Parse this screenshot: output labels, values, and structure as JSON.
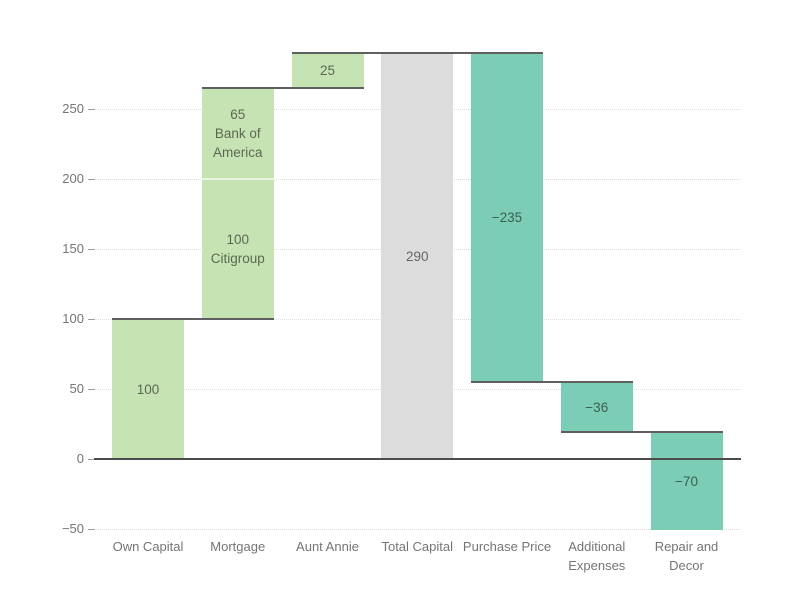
{
  "chart_data": {
    "type": "bar",
    "subtype": "waterfall",
    "title": "",
    "xlabel": "",
    "ylabel": "",
    "grid": "dotted horizontal",
    "legend": "none",
    "ylim": [
      -51,
      290
    ],
    "y_ticks": [
      {
        "value": -50,
        "label": "−50"
      },
      {
        "value": 0,
        "label": "0"
      },
      {
        "value": 50,
        "label": "50"
      },
      {
        "value": 100,
        "label": "100"
      },
      {
        "value": 150,
        "label": "150"
      },
      {
        "value": 200,
        "label": "200"
      },
      {
        "value": 250,
        "label": "250"
      }
    ],
    "categories": [
      "Own Capital",
      "Mortgage",
      "Aunt Annie",
      "Total Capital",
      "Purchase Price",
      "Additional Expenses",
      "Repair and Decor"
    ],
    "category_label_lines": [
      [
        "Own Capital"
      ],
      [
        "Mortgage"
      ],
      [
        "Aunt Annie"
      ],
      [
        "Total Capital"
      ],
      [
        "Purchase Price"
      ],
      [
        "Additional",
        "Expenses"
      ],
      [
        "Repair and",
        "Decor"
      ]
    ],
    "bars": [
      {
        "category": "Own Capital",
        "segments": [
          {
            "from": 0,
            "to": 100,
            "value": 100,
            "label_lines": [
              "100"
            ],
            "color_key": "positive"
          }
        ]
      },
      {
        "category": "Mortgage",
        "segments": [
          {
            "from": 100,
            "to": 200,
            "value": 100,
            "label_lines": [
              "100",
              "Citigroup"
            ],
            "color_key": "positive"
          },
          {
            "from": 200,
            "to": 265,
            "value": 65,
            "label_lines": [
              "65",
              "Bank of",
              "America"
            ],
            "color_key": "positive"
          }
        ]
      },
      {
        "category": "Aunt Annie",
        "segments": [
          {
            "from": 265,
            "to": 290,
            "value": 25,
            "label_lines": [
              "25"
            ],
            "color_key": "positive"
          }
        ]
      },
      {
        "category": "Total Capital",
        "segments": [
          {
            "from": 0,
            "to": 290,
            "value": 290,
            "label_lines": [
              "290"
            ],
            "color_key": "total"
          }
        ]
      },
      {
        "category": "Purchase Price",
        "segments": [
          {
            "from": 290,
            "to": 55,
            "value": -235,
            "label_lines": [
              "−235"
            ],
            "color_key": "negative"
          }
        ]
      },
      {
        "category": "Additional Expenses",
        "segments": [
          {
            "from": 55,
            "to": 19,
            "value": -36,
            "label_lines": [
              "−36"
            ],
            "color_key": "negative"
          }
        ]
      },
      {
        "category": "Repair and Decor",
        "segments": [
          {
            "from": 19,
            "to": -51,
            "value": -70,
            "label_lines": [
              "−70"
            ],
            "color_key": "negative"
          }
        ]
      }
    ],
    "connectors": [
      {
        "level": 100,
        "from_cat": 0,
        "to_cat": 1
      },
      {
        "level": 265,
        "from_cat": 1,
        "to_cat": 2
      },
      {
        "level": 290,
        "from_cat": 2,
        "to_cat": 4
      },
      {
        "level": 55,
        "from_cat": 4,
        "to_cat": 5
      },
      {
        "level": 19,
        "from_cat": 5,
        "to_cat": 6
      }
    ],
    "colors": {
      "positive": "#c6e3b3",
      "negative": "#7ccdb5",
      "total": "#dcdcdc",
      "connector": "#5f5f5f",
      "zero_line": "#4c4c4c",
      "grid": "#dedede",
      "tick_mark": "#9e9e9e",
      "axis_label": "#757575",
      "bar_label": "rgba(0,0,0,0.55)"
    }
  }
}
